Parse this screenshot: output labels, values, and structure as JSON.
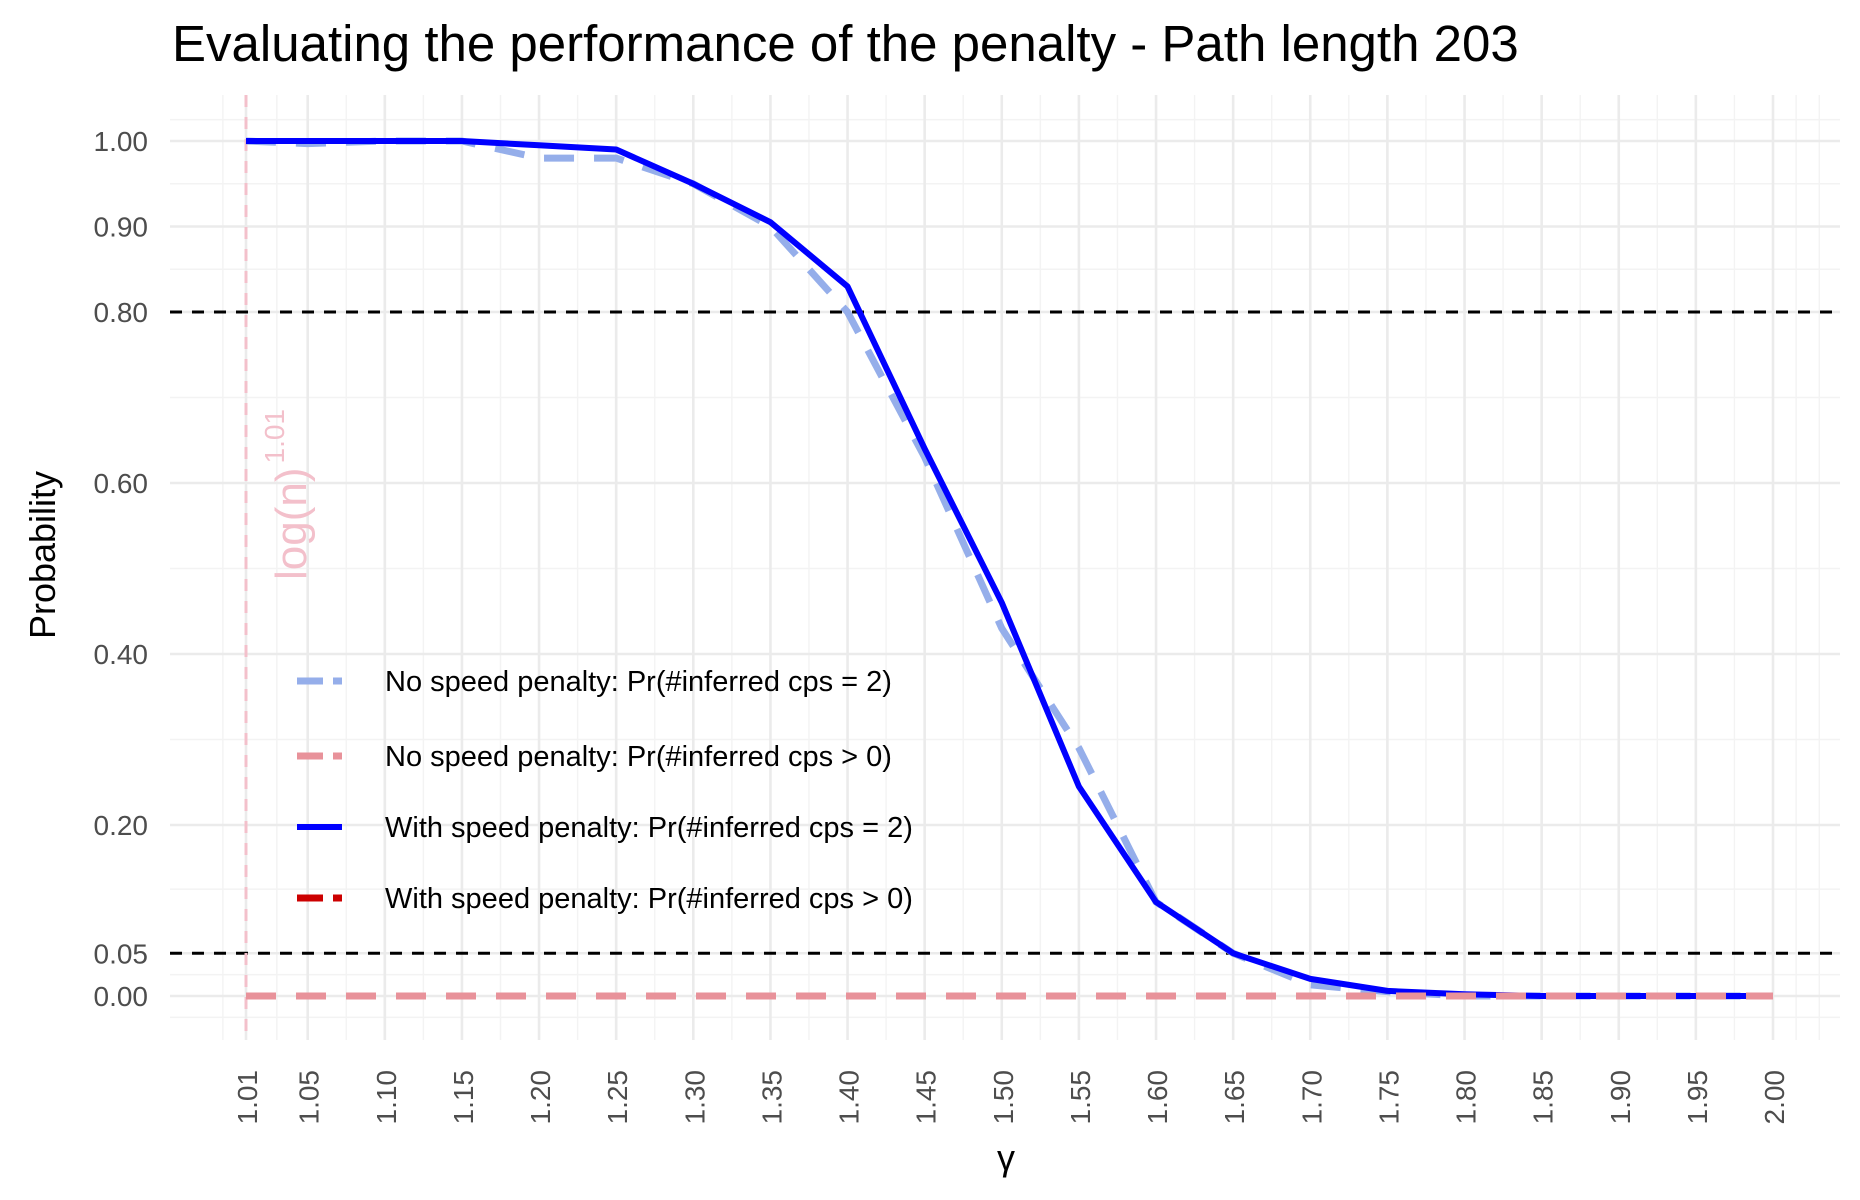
{
  "title": "Evaluating the performance of the penalty - Path length 203",
  "chart_data": {
    "type": "line",
    "title": "Evaluating the performance of the penalty - Path length 203",
    "xlabel": "γ",
    "ylabel": "Probability",
    "xlim": [
      0.98,
      2.04
    ],
    "ylim": [
      -0.05,
      1.05
    ],
    "x_ticks": [
      "1.01",
      "1.05",
      "1.10",
      "1.15",
      "1.20",
      "1.25",
      "1.30",
      "1.35",
      "1.40",
      "1.45",
      "1.50",
      "1.55",
      "1.60",
      "1.65",
      "1.70",
      "1.75",
      "1.80",
      "1.85",
      "1.90",
      "1.95",
      "2.00"
    ],
    "y_ticks": [
      "0.00",
      "0.05",
      "0.20",
      "0.40",
      "0.60",
      "0.80",
      "0.90",
      "1.00"
    ],
    "grid": true,
    "legend_position": "inside-left",
    "reference_lines": [
      {
        "axis": "y",
        "value": 0.8,
        "style": "dashed",
        "color": "#000000"
      },
      {
        "axis": "y",
        "value": 0.05,
        "style": "dashed",
        "color": "#000000"
      },
      {
        "axis": "x",
        "value": 1.01,
        "style": "dashed",
        "color": "#f3c0cb",
        "label": "log(n)",
        "label_superscript": "1.01"
      }
    ],
    "x": [
      1.01,
      1.05,
      1.1,
      1.15,
      1.2,
      1.25,
      1.3,
      1.35,
      1.4,
      1.45,
      1.5,
      1.55,
      1.6,
      1.65,
      1.7,
      1.75,
      1.8,
      1.85,
      1.9,
      1.95,
      2.0
    ],
    "series": [
      {
        "name": "No speed penalty: Pr(#inferred cps = 2)",
        "color": "#95aeea",
        "style": "dashed",
        "width": 7,
        "values": [
          1.0,
          0.997,
          1.0,
          1.0,
          0.98,
          0.98,
          0.95,
          0.9,
          0.8,
          0.63,
          0.43,
          0.29,
          0.11,
          0.05,
          0.013,
          0.005,
          0.0,
          0.0,
          0.0,
          0.0,
          0.0
        ]
      },
      {
        "name": "No speed penalty: Pr(#inferred cps > 0)",
        "color": "#e8929a",
        "style": "dashed",
        "width": 7,
        "values": [
          0,
          0,
          0,
          0,
          0,
          0,
          0,
          0,
          0,
          0,
          0,
          0,
          0,
          0,
          0,
          0,
          0,
          0,
          0,
          0,
          0
        ]
      },
      {
        "name": "With speed penalty: Pr(#inferred cps = 2)",
        "color": "#0000ff",
        "style": "solid",
        "width": 6,
        "values": [
          1.0,
          1.0,
          1.0,
          1.0,
          0.995,
          0.99,
          0.95,
          0.905,
          0.83,
          0.64,
          0.46,
          0.245,
          0.11,
          0.05,
          0.02,
          0.006,
          0.002,
          0.0,
          0.0,
          0.0,
          0.0
        ]
      },
      {
        "name": "With speed penalty: Pr(#inferred cps > 0)",
        "color": "#cc0000",
        "style": "dashed",
        "width": 7,
        "values": [
          0,
          0,
          0,
          0,
          0,
          0,
          0,
          0,
          0,
          0,
          0,
          0,
          0,
          0,
          0,
          0,
          0,
          0,
          0,
          0,
          0
        ]
      }
    ]
  }
}
